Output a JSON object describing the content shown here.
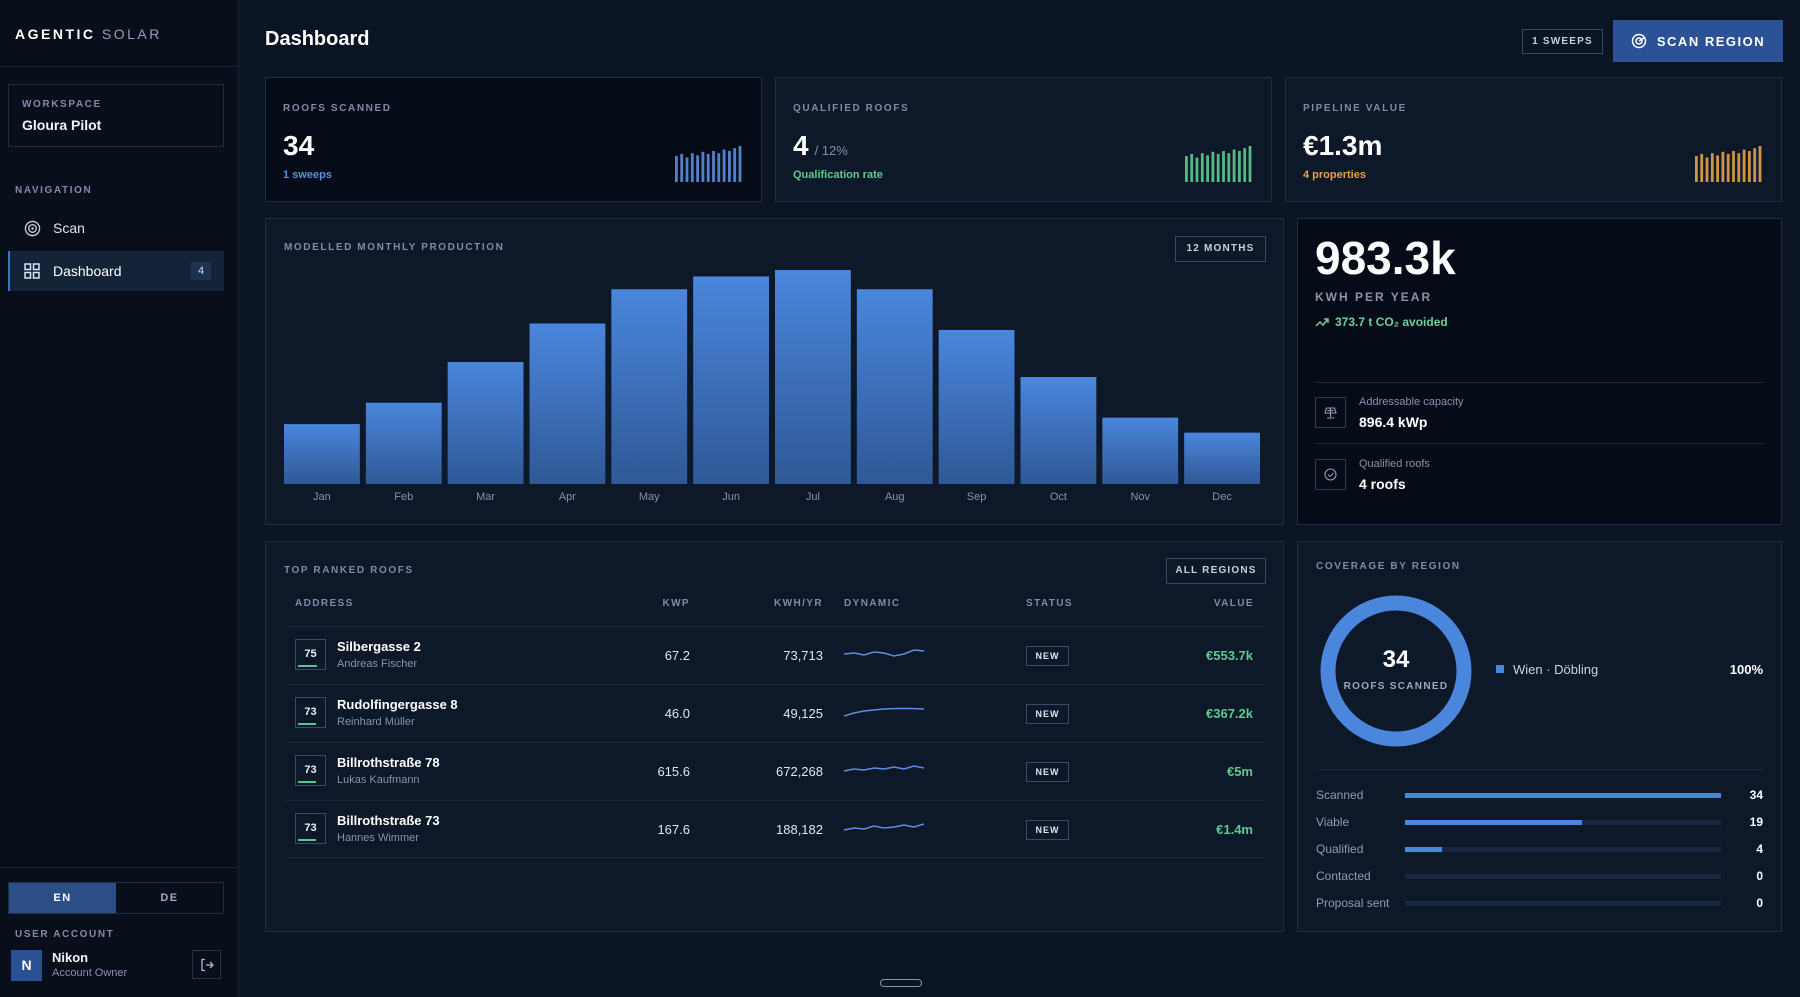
{
  "brand": {
    "strong": "AGENTIC",
    "light": "SOLAR"
  },
  "sidebar": {
    "workspace_label": "WORKSPACE",
    "workspace_name": "Gloura Pilot",
    "nav_label": "NAVIGATION",
    "items": [
      {
        "label": "Scan",
        "icon": "target-icon"
      },
      {
        "label": "Dashboard",
        "icon": "grid-icon",
        "badge": "4",
        "active": true
      }
    ],
    "languages": [
      "EN",
      "DE"
    ],
    "active_language": "EN",
    "user_account_label": "USER ACCOUNT",
    "user": {
      "initial": "N",
      "name": "Nikon",
      "role": "Account Owner"
    }
  },
  "header": {
    "title": "Dashboard",
    "sweeps_badge": "1 SWEEPS",
    "scan_button": "SCAN REGION"
  },
  "kpis": [
    {
      "label": "ROOFS SCANNED",
      "value": "34",
      "suffix": "",
      "sub": "1 sweeps",
      "color": "#5b8fe0"
    },
    {
      "label": "QUALIFIED ROOFS",
      "value": "4",
      "suffix": "/ 12%",
      "sub": "Qualification rate",
      "color": "#5fc98f"
    },
    {
      "label": "PIPELINE VALUE",
      "value": "€1.3m",
      "suffix": "",
      "sub": "4 properties",
      "color": "#e2a24e"
    }
  ],
  "production": {
    "title": "MODELLED MONTHLY PRODUCTION",
    "range_button": "12 MONTHS"
  },
  "chart_data": {
    "type": "bar",
    "title": "MODELLED MONTHLY PRODUCTION",
    "categories": [
      "Jan",
      "Feb",
      "Mar",
      "Apr",
      "May",
      "Jun",
      "Jul",
      "Aug",
      "Sep",
      "Oct",
      "Nov",
      "Dec"
    ],
    "values": [
      28,
      38,
      57,
      75,
      91,
      97,
      100,
      91,
      72,
      50,
      31,
      24
    ],
    "ylim": [
      0,
      100
    ],
    "xlabel": "",
    "ylabel": "",
    "grid": false,
    "color": "#4a86dc"
  },
  "energy": {
    "value": "983.3k",
    "unit": "KWH PER YEAR",
    "co2": "373.7 t CO₂ avoided",
    "stats": [
      {
        "label": "Addressable capacity",
        "value": "896.4 kWp",
        "icon": "solar-panel-icon"
      },
      {
        "label": "Qualified roofs",
        "value": "4 roofs",
        "icon": "check-badge-icon"
      }
    ]
  },
  "roofs": {
    "title": "TOP RANKED ROOFS",
    "filter_button": "ALL REGIONS",
    "columns": {
      "address": "ADDRESS",
      "kwp": "KWP",
      "kwh": "KWH/YR",
      "dynamic": "DYNAMIC",
      "status": "STATUS",
      "value": "VALUE"
    },
    "rows": [
      {
        "score": "75",
        "score_pct": 0.75,
        "address": "Silbergasse 2",
        "owner": "Andreas Fischer",
        "kwp": "67.2",
        "kwh": "73,713",
        "status": "NEW",
        "value": "€553.7k",
        "trend": [
          0.5,
          0.45,
          0.55,
          0.4,
          0.45,
          0.6,
          0.5,
          0.3,
          0.35
        ]
      },
      {
        "score": "73",
        "score_pct": 0.73,
        "address": "Rudolfingergasse 8",
        "owner": "Reinhard Müller",
        "kwp": "46.0",
        "kwh": "49,125",
        "status": "NEW",
        "value": "€367.2k",
        "trend": [
          0.7,
          0.55,
          0.45,
          0.4,
          0.35,
          0.33,
          0.32,
          0.33,
          0.35
        ]
      },
      {
        "score": "73",
        "score_pct": 0.73,
        "address": "Billrothstraße 78",
        "owner": "Lukas Kaufmann",
        "kwp": "615.6",
        "kwh": "672,268",
        "status": "NEW",
        "value": "€5m",
        "trend": [
          0.55,
          0.45,
          0.5,
          0.4,
          0.45,
          0.35,
          0.45,
          0.3,
          0.4
        ]
      },
      {
        "score": "73",
        "score_pct": 0.73,
        "address": "Billrothstraße 73",
        "owner": "Hannes Wimmer",
        "kwp": "167.6",
        "kwh": "188,182",
        "status": "NEW",
        "value": "€1.4m",
        "trend": [
          0.6,
          0.5,
          0.55,
          0.4,
          0.5,
          0.45,
          0.35,
          0.45,
          0.3
        ]
      }
    ]
  },
  "coverage": {
    "title": "COVERAGE BY REGION",
    "donut_value": "34",
    "donut_label": "ROOFS SCANNED",
    "legend": [
      {
        "name": "Wien · Döbling",
        "pct": "100%",
        "fraction": 1.0
      }
    ],
    "funnel": [
      {
        "label": "Scanned",
        "value": "34",
        "fraction": 1.0
      },
      {
        "label": "Viable",
        "value": "19",
        "fraction": 0.559
      },
      {
        "label": "Qualified",
        "value": "4",
        "fraction": 0.118
      },
      {
        "label": "Contacted",
        "value": "0",
        "fraction": 0
      },
      {
        "label": "Proposal sent",
        "value": "0",
        "fraction": 0
      }
    ]
  },
  "colors": {
    "accent": "#2b5294",
    "bar": "#4a86dc",
    "positive": "#5fc98f",
    "gold": "#e2a24e"
  }
}
